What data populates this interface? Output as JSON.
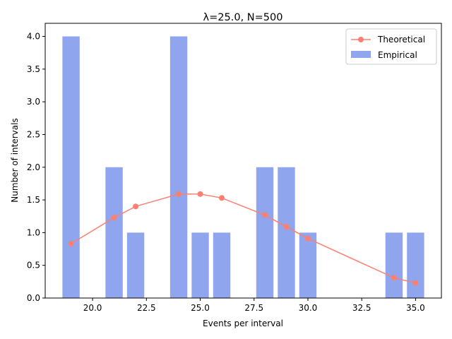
{
  "chart_data": {
    "type": "bar",
    "title": "λ=25.0, N=500",
    "xlabel": "Events per interval",
    "ylabel": "Number of intervals",
    "xlim": [
      17.8,
      36.2
    ],
    "ylim": [
      0,
      4.2
    ],
    "xticks": [
      "20.0",
      "22.5",
      "25.0",
      "27.5",
      "30.0",
      "32.5",
      "35.0"
    ],
    "yticks": [
      "0.0",
      "0.5",
      "1.0",
      "1.5",
      "2.0",
      "2.5",
      "3.0",
      "3.5",
      "4.0"
    ],
    "grid": false,
    "legend_position": "upper-right",
    "series": [
      {
        "name": "Theoretical",
        "kind": "line",
        "color": "#fa8072",
        "x": [
          19,
          21,
          22,
          24,
          25,
          26,
          28,
          29,
          30,
          34,
          35
        ],
        "values": [
          0.83,
          1.23,
          1.4,
          1.59,
          1.59,
          1.53,
          1.27,
          1.09,
          0.91,
          0.31,
          0.23
        ]
      },
      {
        "name": "Empirical",
        "kind": "bar",
        "color": "#8fa6ee",
        "x": [
          19,
          21,
          22,
          24,
          25,
          26,
          28,
          29,
          30,
          34,
          35
        ],
        "values": [
          4,
          2,
          1,
          4,
          1,
          1,
          2,
          2,
          1,
          1,
          1
        ]
      }
    ]
  }
}
